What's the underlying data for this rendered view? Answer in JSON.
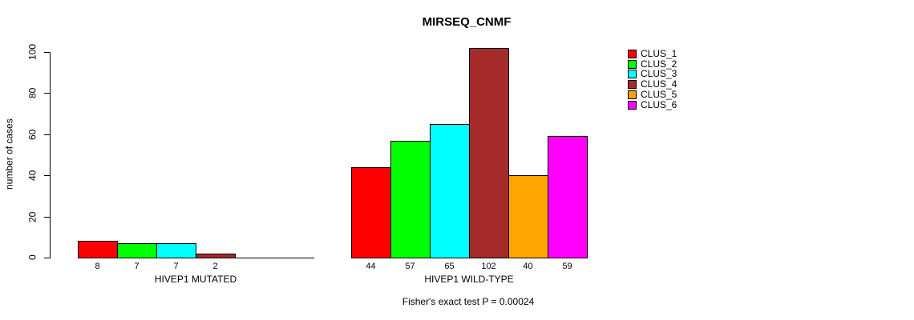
{
  "background": "#FFFFFF",
  "chart_data": {
    "type": "bar",
    "title": "MIRSEQ_CNMF",
    "ylabel": "number of cases",
    "xlabel": "",
    "ylim": [
      0,
      100
    ],
    "yticks": [
      0,
      20,
      40,
      60,
      80,
      100
    ],
    "grid": false,
    "legend_position": "right",
    "legend": [
      {
        "label": "CLUS_1",
        "color": "#FF0000"
      },
      {
        "label": "CLUS_2",
        "color": "#00FF00"
      },
      {
        "label": "CLUS_3",
        "color": "#00FFFF"
      },
      {
        "label": "CLUS_4",
        "color": "#A52A2A"
      },
      {
        "label": "CLUS_5",
        "color": "#FFA500"
      },
      {
        "label": "CLUS_6",
        "color": "#FF00FF"
      }
    ],
    "categories": [
      "CLUS_1",
      "CLUS_2",
      "CLUS_3",
      "CLUS_4",
      "CLUS_5",
      "CLUS_6"
    ],
    "groups": [
      {
        "label": "HIVEP1 MUTATED",
        "values": [
          8,
          7,
          7,
          2,
          0,
          0
        ]
      },
      {
        "label": "HIVEP1 WILD-TYPE",
        "values": [
          44,
          57,
          65,
          102,
          40,
          59
        ]
      }
    ],
    "annotation": "Fisher's exact test P = 0.00024"
  }
}
